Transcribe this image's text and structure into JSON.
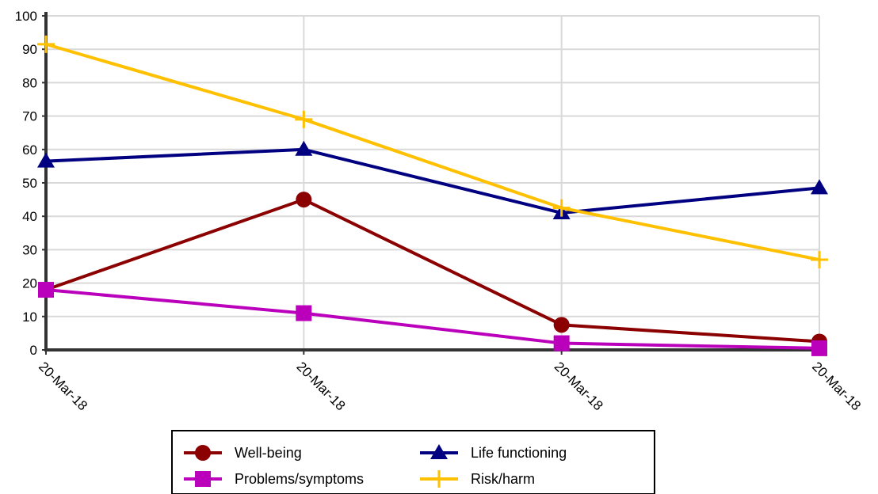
{
  "chart_data": {
    "type": "line",
    "categories": [
      "20-Mar-18",
      "20-Mar-18",
      "20-Mar-18",
      "20-Mar-18"
    ],
    "ylim": [
      0,
      100
    ],
    "yticks": [
      "0",
      "10",
      "20",
      "30",
      "40",
      "50",
      "60",
      "70",
      "80",
      "90",
      "100"
    ],
    "grid": true,
    "legend_position": "bottom-center",
    "series": [
      {
        "name": "Well-being",
        "color": "#8b0000",
        "marker": "circle",
        "values": [
          18,
          45,
          7.5,
          2.5
        ]
      },
      {
        "name": "Life functioning",
        "color": "#000080",
        "marker": "triangle",
        "values": [
          56.5,
          60,
          41,
          48.5
        ]
      },
      {
        "name": "Problems/symptoms",
        "color": "#bb00bb",
        "marker": "square",
        "values": [
          18,
          11,
          2,
          0.5
        ]
      },
      {
        "name": "Risk/harm",
        "color": "#ffc000",
        "marker": "plus",
        "values": [
          91.5,
          69,
          42.5,
          27
        ]
      }
    ]
  }
}
